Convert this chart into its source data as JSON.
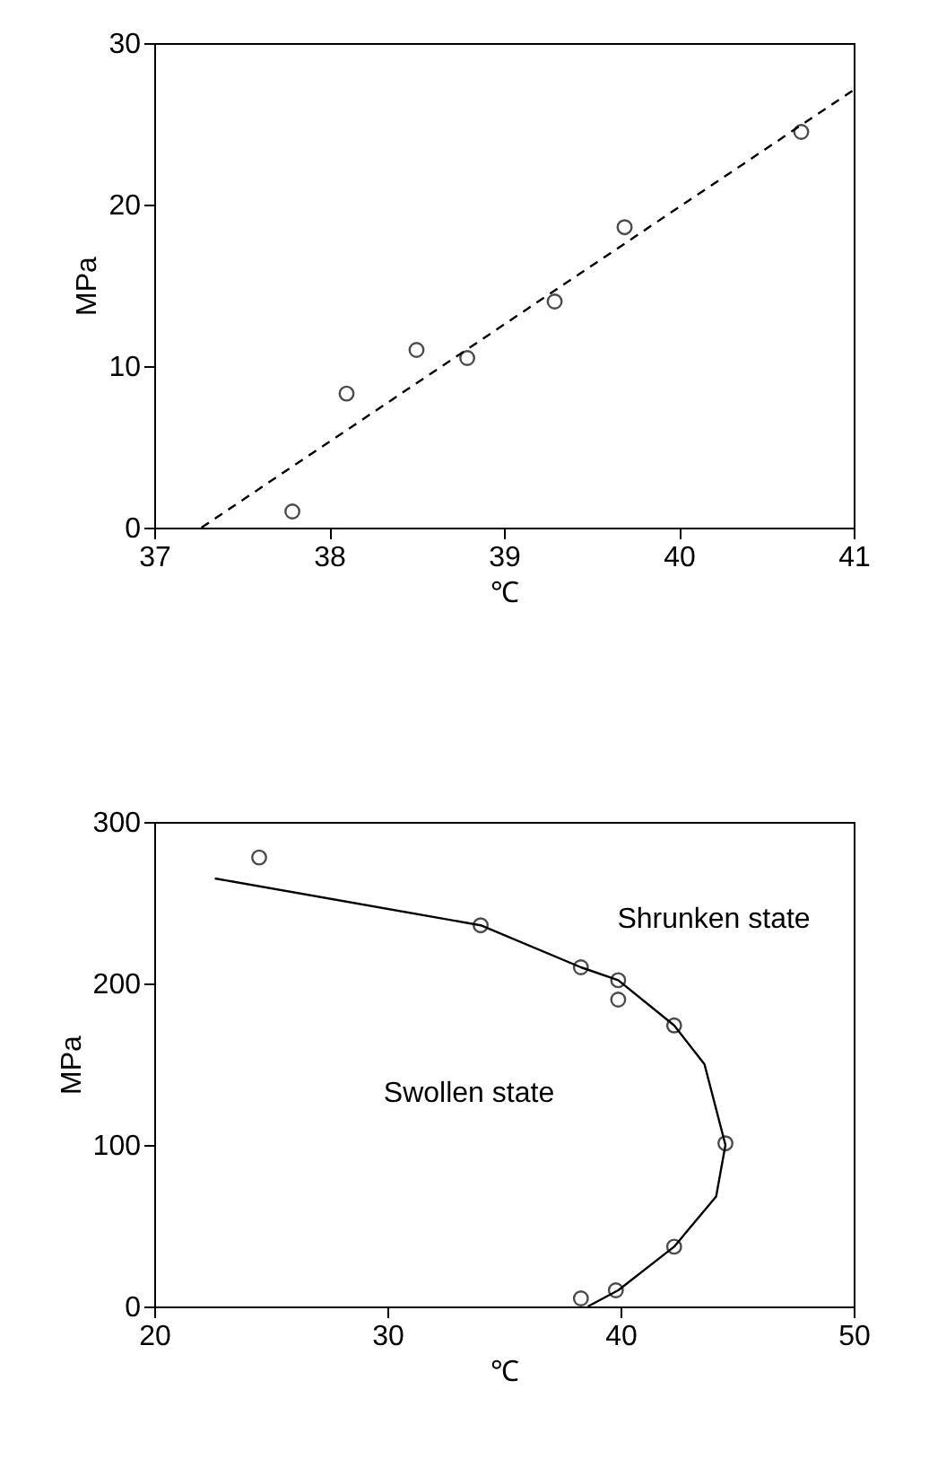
{
  "chart_data": [
    {
      "type": "scatter",
      "xlabel": "℃",
      "ylabel": "MPa",
      "xlim": [
        37,
        41
      ],
      "ylim": [
        0,
        30
      ],
      "xticks": [
        37,
        38,
        39,
        40,
        41
      ],
      "yticks": [
        0,
        10,
        20,
        30
      ],
      "grid": false,
      "series": [
        {
          "color": "#000000",
          "marker": "circle",
          "x": [
            37.79,
            38.1,
            38.5,
            38.79,
            39.29,
            39.69,
            40.7
          ],
          "values": [
            1.0,
            8.3,
            11.0,
            10.5,
            14.0,
            18.6,
            24.5
          ]
        },
        {
          "type": "line",
          "color": "#000000",
          "line_style": "dashed",
          "x": [
            37.27,
            41
          ],
          "values": [
            0,
            27.1
          ]
        }
      ]
    },
    {
      "type": "scatter",
      "xlabel": "℃",
      "ylabel": "MPa",
      "xlim": [
        20,
        50
      ],
      "ylim": [
        0,
        300
      ],
      "xticks": [
        20,
        30,
        40,
        50
      ],
      "yticks": [
        0,
        100,
        200,
        300
      ],
      "grid": false,
      "annotations": [
        "Shrunken   state",
        "Swollen   state"
      ],
      "series": [
        {
          "color": "#000000",
          "marker": "circle",
          "x": [
            24.5,
            34.0,
            38.3,
            39.9,
            39.9,
            42.3,
            44.5,
            42.3,
            39.8,
            38.3
          ],
          "values": [
            278,
            236,
            210,
            202,
            190,
            174,
            101,
            37,
            10,
            5
          ]
        },
        {
          "type": "line",
          "color": "#000000",
          "line_style": "solid",
          "x": [
            22.6,
            34.0,
            38.3,
            39.9,
            42.3,
            43.6,
            44.5,
            44.1,
            42.3,
            39.9,
            38.6
          ],
          "values": [
            265,
            236,
            210,
            202,
            174,
            150,
            100,
            68,
            37,
            10,
            0
          ]
        }
      ]
    }
  ]
}
